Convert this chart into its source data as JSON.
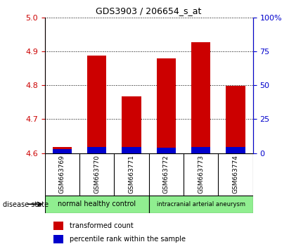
{
  "title": "GDS3903 / 206654_s_at",
  "samples": [
    "GSM663769",
    "GSM663770",
    "GSM663771",
    "GSM663772",
    "GSM663773",
    "GSM663774"
  ],
  "transformed_counts": [
    4.619,
    4.888,
    4.768,
    4.879,
    4.928,
    4.799
  ],
  "percentile_ranks": [
    3.0,
    4.5,
    4.5,
    4.0,
    4.5,
    4.5
  ],
  "base_value": 4.6,
  "ylim_left": [
    4.6,
    5.0
  ],
  "ylim_right": [
    0,
    100
  ],
  "yticks_left": [
    4.6,
    4.7,
    4.8,
    4.9,
    5.0
  ],
  "yticks_right": [
    0,
    25,
    50,
    75,
    100
  ],
  "ytick_right_labels": [
    "0",
    "25",
    "50",
    "75",
    "100%"
  ],
  "groups": [
    {
      "label": "normal healthy control",
      "start": 0,
      "end": 3
    },
    {
      "label": "intracranial arterial aneurysm",
      "start": 3,
      "end": 6
    }
  ],
  "disease_state_label": "disease state",
  "bar_color_red": "#cc0000",
  "bar_color_blue": "#0000cc",
  "bar_width": 0.55,
  "tick_color_left": "#cc0000",
  "tick_color_right": "#0000cc",
  "group_color": "#90ee90",
  "sample_box_color": "#d3d3d3",
  "legend_items": [
    {
      "label": "transformed count",
      "color": "#cc0000"
    },
    {
      "label": "percentile rank within the sample",
      "color": "#0000cc"
    }
  ]
}
